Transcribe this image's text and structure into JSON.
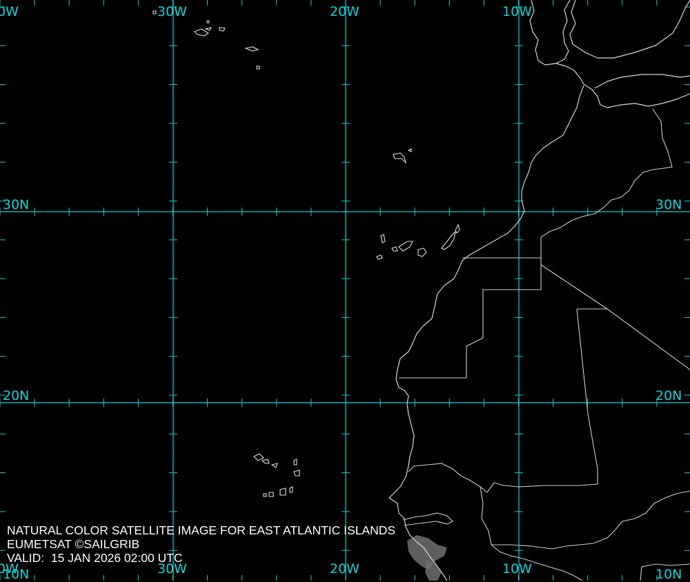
{
  "map": {
    "grid": {
      "lon_labels_top": [
        "0W",
        "30W",
        "20W",
        "10W"
      ],
      "lon_labels_bottom": [
        "0W",
        "30W",
        "20W",
        "10W"
      ],
      "lat_labels_left": [
        "30N",
        "20N",
        "10N"
      ],
      "lat_labels_right": [
        "30N",
        "20N",
        "10N"
      ]
    },
    "caption": {
      "line1": "NATURAL COLOR SATELLITE IMAGE FOR EAST ATLANTIC ISLANDS",
      "line2": "EUMETSAT ©SAILGRIB",
      "valid_label": "VALID:",
      "valid_time": "15 JAN 2026 02:00 UTC"
    },
    "colors": {
      "grid": "#14d4d6",
      "coastline": "#d9d9d9",
      "background": "#000000",
      "caption_text": "#ffffff"
    }
  }
}
